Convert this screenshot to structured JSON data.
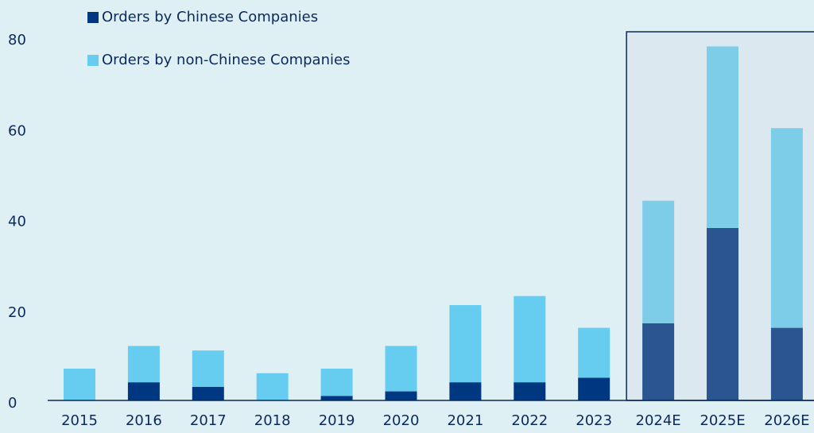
{
  "chart_data": {
    "type": "stacked_bar",
    "categories": [
      "2015",
      "2016",
      "2017",
      "2018",
      "2019",
      "2020",
      "2021",
      "2022",
      "2023",
      "2024E",
      "2025E",
      "2026E"
    ],
    "series": [
      {
        "name": "Orders by Chinese Companies",
        "color": "#003781",
        "estimate_color": "#2b5591",
        "values": [
          0,
          4,
          3,
          0,
          1,
          2,
          4,
          4,
          5,
          17,
          38,
          16
        ]
      },
      {
        "name": "Orders by non-Chinese Companies",
        "color": "#66cdf0",
        "estimate_color": "#7dcde9",
        "values": [
          7,
          8,
          8,
          6,
          6,
          10,
          17,
          19,
          11,
          27,
          40,
          44
        ]
      }
    ],
    "shaded_categories": [
      "2024E",
      "2025E",
      "2026E"
    ],
    "ylim": [
      0,
      80
    ],
    "yticks": [
      0,
      20,
      40,
      60,
      80
    ],
    "grid": false
  }
}
